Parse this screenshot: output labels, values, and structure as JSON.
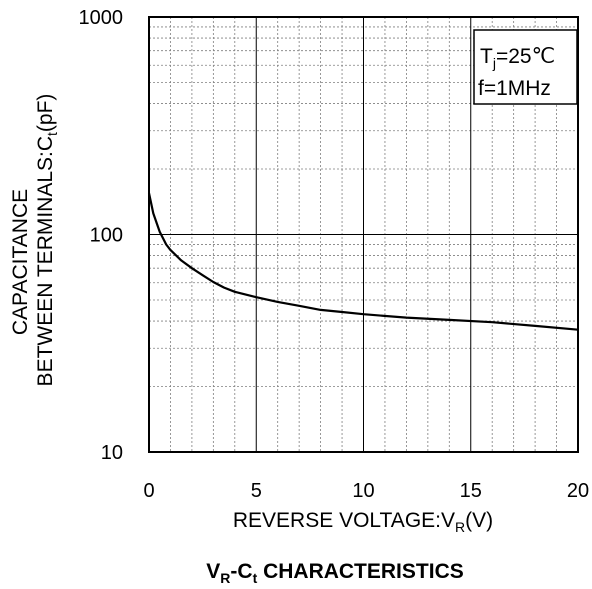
{
  "chart_data": {
    "type": "line",
    "scale": {
      "x": "linear",
      "y": "log"
    },
    "xlim": [
      0,
      20
    ],
    "ylim": [
      10,
      1000
    ],
    "grid": true,
    "x_ticks": [
      "0",
      "5",
      "10",
      "15",
      "20"
    ],
    "y_ticks": [
      "10",
      "100",
      "1000"
    ],
    "xlabel": {
      "main": "REVERSE VOLTAGE:V",
      "sub": "R",
      "tail": "(V)"
    },
    "ylabel": {
      "line1": "CAPACITANCE",
      "line2_main": "BETWEEN TERMINALS:C",
      "line2_sub": "t",
      "line2_tail": "(pF)"
    },
    "title": {
      "v": "V",
      "v_sub": "R",
      "dash_c": "-C",
      "c_sub": "t",
      "rest": " CHARACTERISTICS"
    },
    "conditions": {
      "line1": {
        "t": "T",
        "sub": "j",
        "rest": "=25℃"
      },
      "line2": "f=1MHz"
    },
    "series": [
      {
        "x": [
          0,
          0.2,
          0.5,
          0.8,
          1.0,
          1.5,
          2,
          2.5,
          3,
          3.5,
          4,
          5,
          6,
          7,
          8,
          9,
          10,
          12,
          14,
          16,
          18,
          20
        ],
        "y": [
          155,
          125,
          103,
          90,
          85,
          76,
          70,
          65,
          60.5,
          57,
          54.5,
          51.5,
          49,
          47,
          45,
          44,
          43,
          41.5,
          40.5,
          39.5,
          38,
          36.5
        ]
      }
    ]
  }
}
